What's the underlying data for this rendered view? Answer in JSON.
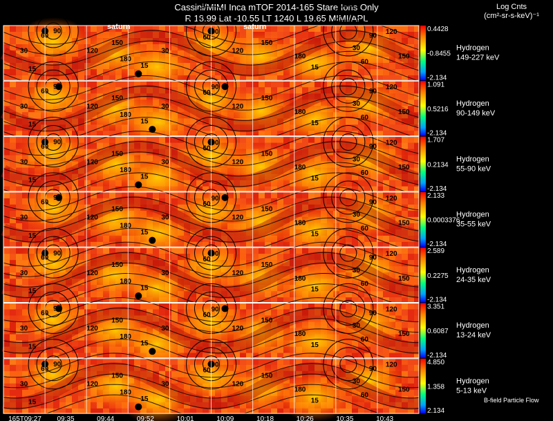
{
  "title_line1": "Cassini/MIMI Inca mTOF  2014-165   Stare   Ions Only",
  "title_line2": "R      18.99 Lat -10.55 LT 1240 L        19.65  MIMI/APL",
  "legend_title_1": "Log Cnts",
  "legend_title_2": "(cm²-sr-s-keV)⁻¹",
  "bfield_label": "B-field Particle Flow",
  "chart_data": {
    "type": "heatmap",
    "time_ticks": [
      "165T09:27",
      "09:35",
      "09:44",
      "09:52",
      "10:01",
      "10:09",
      "10:18",
      "10:26",
      "10:35",
      "10:43"
    ],
    "saturn_labels": [
      "saturn",
      "saturn"
    ],
    "rows": [
      {
        "species": "Hydrogen",
        "energy": "149-227 keV",
        "scale": [
          "0.4428",
          "-0.8455",
          "-2.134"
        ]
      },
      {
        "species": "Hydrogen",
        "energy": "90-149 keV",
        "scale": [
          "1.091",
          "0.5216",
          "-2.134"
        ]
      },
      {
        "species": "Hydrogen",
        "energy": "55-90 keV",
        "scale": [
          "1.707",
          "0.2134",
          "-2.134"
        ]
      },
      {
        "species": "Hydrogen",
        "energy": "35-55 keV",
        "scale": [
          "2.133",
          "0.0003376",
          "-2.134"
        ]
      },
      {
        "species": "Hydrogen",
        "energy": "24-35 keV",
        "scale": [
          "2.589",
          "0.2275",
          "-2.134"
        ]
      },
      {
        "species": "Hydrogen",
        "energy": "13-24 keV",
        "scale": [
          "3.351",
          "0.6087",
          "-2.134"
        ]
      },
      {
        "species": "Hydrogen",
        "energy": "5-13 keV",
        "scale": [
          "4.850",
          "1.358",
          "2.134"
        ]
      }
    ],
    "contour_labels": [
      "15",
      "30",
      "60",
      "90",
      "120",
      "150",
      "180"
    ],
    "colormap": [
      "#0000ff",
      "#00a0ff",
      "#00ff80",
      "#ffff00",
      "#ff8000",
      "#ff0000"
    ]
  }
}
